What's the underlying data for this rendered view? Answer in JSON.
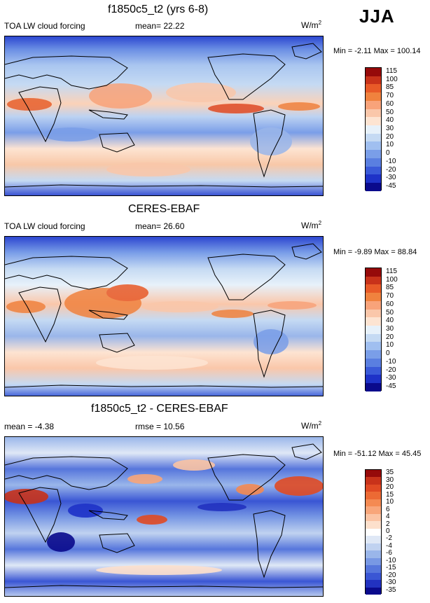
{
  "season": "JJA",
  "panels": [
    {
      "title": "f1850c5_t2 (yrs 6-8)",
      "left_label": "TOA LW cloud forcing",
      "center_label": "mean=  22.22",
      "units": "W/m",
      "units_sup": "2",
      "minmax": "Min =  -2.11 Max = 100.14",
      "levels": [
        "115",
        "100",
        "85",
        "70",
        "60",
        "50",
        "40",
        "30",
        "20",
        "10",
        "0",
        "-10",
        "-20",
        "-30",
        "-45"
      ],
      "colors": [
        "#960a0a",
        "#c8321a",
        "#e85a28",
        "#f0823e",
        "#f8a37a",
        "#fac7aa",
        "#fde4d2",
        "#e7f1fa",
        "#c5daf3",
        "#a0bff0",
        "#7a9ee8",
        "#5a7fe0",
        "#3a5ad8",
        "#1e32c8",
        "#0a0a8c"
      ]
    },
    {
      "title": "CERES-EBAF",
      "left_label": "TOA LW cloud forcing",
      "center_label": "mean=  26.60",
      "units": "W/m",
      "units_sup": "2",
      "minmax": "Min =  -9.89 Max =  88.84",
      "levels": [
        "115",
        "100",
        "85",
        "70",
        "60",
        "50",
        "40",
        "30",
        "20",
        "10",
        "0",
        "-10",
        "-20",
        "-30",
        "-45"
      ],
      "colors": [
        "#960a0a",
        "#c8321a",
        "#e85a28",
        "#f0823e",
        "#f8a37a",
        "#fac7aa",
        "#fde4d2",
        "#e7f1fa",
        "#c5daf3",
        "#a0bff0",
        "#7a9ee8",
        "#5a7fe0",
        "#3a5ad8",
        "#1e32c8",
        "#0a0a8c"
      ]
    },
    {
      "title": "f1850c5_t2 - CERES-EBAF",
      "left_label": "mean =  -4.38",
      "center_label": "rmse =  10.56",
      "units": "W/m",
      "units_sup": "2",
      "minmax": "Min = -51.12 Max =  45.45",
      "levels": [
        "35",
        "30",
        "20",
        "15",
        "10",
        "6",
        "4",
        "2",
        "0",
        "-2",
        "-4",
        "-6",
        "-10",
        "-15",
        "-20",
        "-30",
        "-35"
      ],
      "colors": [
        "#960a0a",
        "#c8321a",
        "#e04a24",
        "#ec6a34",
        "#f48a52",
        "#f8a67a",
        "#fbc4a4",
        "#fde0cc",
        "#ffffff",
        "#dfe8f6",
        "#c0d2f0",
        "#9ab6ea",
        "#7898e4",
        "#5676dc",
        "#3a56d4",
        "#2232c0",
        "#0a0a8c"
      ]
    }
  ]
}
